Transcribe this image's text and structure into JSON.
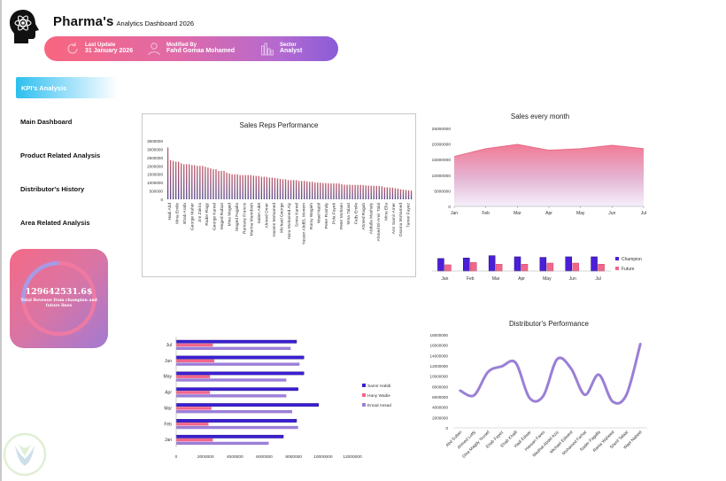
{
  "header": {
    "title_main": "Pharma's",
    "title_sub": "Analytics Dashboard 2026",
    "info": [
      {
        "icon": "refresh-icon",
        "label": "Last Update",
        "value": "31 January 2026"
      },
      {
        "icon": "user-icon",
        "label": "Modified By",
        "value": "Fahd Gomaa Mohamed"
      },
      {
        "icon": "bar-chart-icon",
        "label": "Sector",
        "value": "Analyst"
      }
    ]
  },
  "sidebar": {
    "active_tab": "KPI's Analysis",
    "items": [
      {
        "label": "Main Dashboard"
      },
      {
        "label": "Product Related Analysis"
      },
      {
        "label": "Distributor's History"
      },
      {
        "label": "Area Related Analysis"
      }
    ]
  },
  "kpi": {
    "value": "129642531.6$",
    "label": "Total Revenue from champion and future lines",
    "ring_progress": 0.27
  },
  "chart_data": [
    {
      "id": "sales-reps",
      "type": "bar",
      "title": "Sales Reps Performance",
      "ylim": [
        0,
        3500000
      ],
      "yticks": [
        0,
        500000,
        1000000,
        1500000,
        2000000,
        2500000,
        3000000,
        3500000
      ],
      "shown_labels": [
        "Hadi Abd",
        "Mina Emile",
        "Ehab Arafa",
        "George Maher",
        "Jim Zakria",
        "Rader Ragy",
        "George Kamel",
        "Maged Rafaat",
        "Mina Maged",
        "Maged Fagalla",
        "Ramany Francis",
        "Marina Mamdouh",
        "Saber Adel",
        "Ahmed Omer",
        "Hazem Mohamed",
        "Michael George",
        "Nora Mohamed Aly",
        "Sonia Kamel",
        "Yasser AbdEL Monem",
        "Ramy Wagieh",
        "Wael Nabil",
        "Peter Roshdy",
        "Pola Fayek",
        "Peter Mohsen",
        "Mina Talaat",
        "Fady Emile",
        "Ahmed Ragab",
        "Abdalla Mashaly",
        "Ahmed El-Amir Talal",
        "Mina Elia",
        "Amr Samir Amer",
        "Osama Mohamed",
        "Tamer Fayez"
      ],
      "values": [
        3100000,
        2350000,
        2300000,
        2250000,
        2250000,
        2150000,
        2100000,
        2100000,
        2100000,
        2050000,
        2050000,
        2000000,
        2000000,
        2000000,
        1950000,
        1900000,
        1850000,
        1800000,
        1800000,
        1700000,
        1700000,
        1700000,
        1600000,
        1550000,
        1500000,
        1500000,
        1500000,
        1450000,
        1450000,
        1450000,
        1450000,
        1450000,
        1420000,
        1400000,
        1400000,
        1350000,
        1350000,
        1330000,
        1300000,
        1300000,
        1280000,
        1250000,
        1220000,
        1200000,
        1200000,
        1150000,
        1150000,
        1150000,
        1150000,
        1100000,
        1100000,
        1100000,
        1080000,
        1050000,
        1050000,
        1000000,
        1000000,
        1000000,
        980000,
        970000,
        960000,
        950000,
        950000,
        950000,
        950000,
        900000,
        870000,
        870000,
        870000,
        860000,
        860000,
        860000,
        860000,
        850000,
        830000,
        820000,
        820000,
        810000,
        800000,
        800000,
        780000,
        720000,
        720000,
        700000,
        700000,
        660000,
        640000,
        600000,
        580000,
        560000,
        540000,
        520000
      ]
    },
    {
      "id": "sales-month",
      "type": "area",
      "title": "Sales every month",
      "categories": [
        "Jan",
        "Feb",
        "Mar",
        "Apr",
        "May",
        "Jun",
        "Jul"
      ],
      "values": [
        16000000,
        18500000,
        19900000,
        18000000,
        18500000,
        19600000,
        18500000
      ],
      "ylim": [
        0,
        25000000
      ],
      "yticks": [
        0,
        5000000,
        10000000,
        15000000,
        20000000,
        25000000
      ]
    },
    {
      "id": "champion-future",
      "type": "bar",
      "categories": [
        "Jan",
        "Feb",
        "Mar",
        "Apr",
        "May",
        "Jun",
        "Jul"
      ],
      "series": [
        {
          "name": "Champion",
          "color": "#4b1fd8",
          "values": [
            11000000,
            11500000,
            13500000,
            12500000,
            12000000,
            12500000,
            12500000
          ]
        },
        {
          "name": "Future",
          "color": "#f2668b",
          "values": [
            5500000,
            7500000,
            6000000,
            6000000,
            7000000,
            7000000,
            6000000
          ]
        }
      ],
      "legend": "right"
    },
    {
      "id": "distributor-month",
      "type": "bar",
      "orientation": "horizontal",
      "categories": [
        "Jan",
        "Feb",
        "Mar",
        "Apr",
        "May",
        "Jun",
        "Jul"
      ],
      "series": [
        {
          "name": "Samir Habib",
          "color": "#3a1fd6",
          "values": [
            7300000,
            8200000,
            9700000,
            8300000,
            8700000,
            8700000,
            8200000
          ]
        },
        {
          "name": "Hany Wadie",
          "color": "#f2668b",
          "values": [
            2500000,
            2200000,
            2400000,
            2300000,
            2300000,
            2600000,
            2500000
          ]
        },
        {
          "name": "Emad Assad",
          "color": "#9b7fd8",
          "values": [
            6300000,
            8300000,
            7900000,
            7500000,
            7500000,
            8400000,
            7800000
          ]
        }
      ],
      "xlim": [
        0,
        12000000
      ],
      "xticks": [
        0,
        2000000,
        4000000,
        6000000,
        8000000,
        10000000,
        12000000
      ],
      "legend": "right"
    },
    {
      "id": "distributor-performance",
      "type": "line",
      "title": "Distributor's Performance",
      "categories": [
        "Abd Sultan",
        "Ahmed Lotfy",
        "Dina Magdy Yousef",
        "Ehab Fayez",
        "Ehab Khalil",
        "Hadi Edwar",
        "Hassan Fares",
        "Medhat Abdel Aziz",
        "Michael Edward",
        "Mohamed Farhat",
        "Nader Fagalla",
        "Rania Waheed",
        "Sherif Talaat",
        "Wael Nabeel"
      ],
      "values": [
        7200000,
        6300000,
        10800000,
        11900000,
        12600000,
        5800000,
        6200000,
        13300000,
        11500000,
        6400000,
        10300000,
        5100000,
        6400000,
        16200000
      ],
      "ylim": [
        0,
        18000000
      ],
      "yticks": [
        0,
        2000000,
        4000000,
        6000000,
        8000000,
        10000000,
        12000000,
        14000000,
        16000000,
        18000000
      ],
      "color": "#9a7fd6"
    }
  ]
}
